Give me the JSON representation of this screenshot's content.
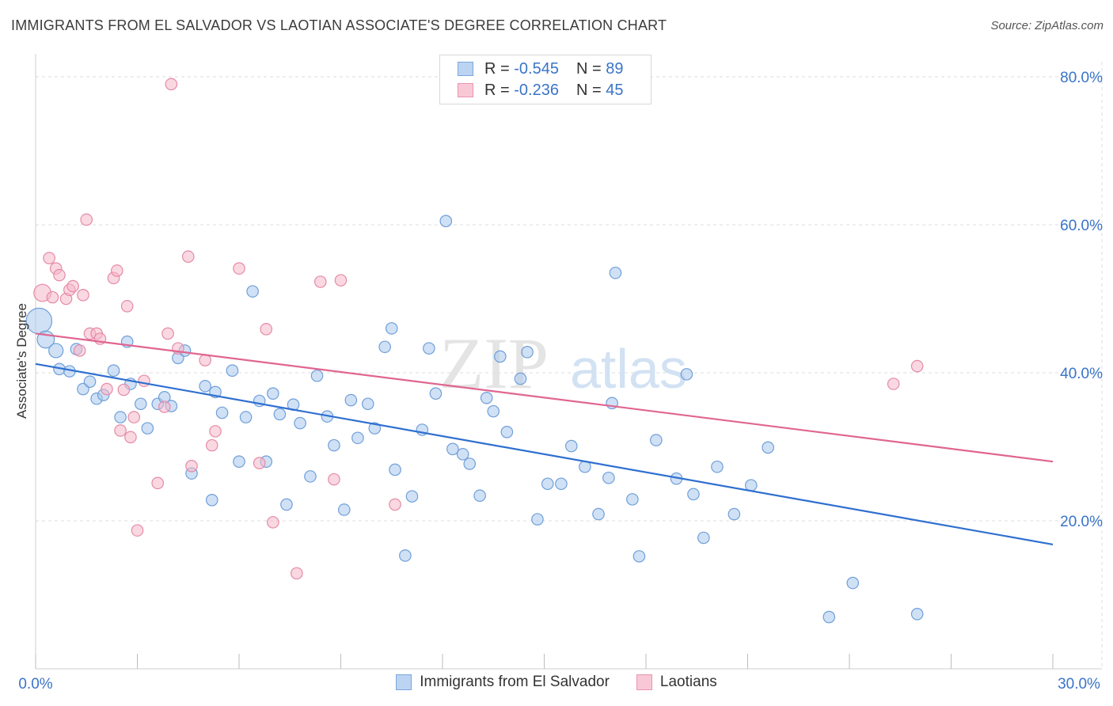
{
  "title": "IMMIGRANTS FROM EL SALVADOR VS LAOTIAN ASSOCIATE'S DEGREE CORRELATION CHART",
  "source": "Source: ZipAtlas.com",
  "watermark": {
    "zip": "ZIP",
    "atlas": "atlas"
  },
  "legend": {
    "rows": [
      {
        "r_label": "R =",
        "r_value": "-0.545",
        "n_label": "N =",
        "n_value": "89"
      },
      {
        "r_label": "R =",
        "r_value": "-0.236",
        "n_label": "N =",
        "n_value": "45"
      }
    ]
  },
  "bottom_legend": [
    "Immigrants from El Salvador",
    "Laotians"
  ],
  "colors": {
    "blue_fill": "#a9c8ee",
    "blue_stroke": "#6f9fd8",
    "blue_line": "#2f6fd0",
    "pink_fill": "#f6b8cb",
    "pink_stroke": "#e58aa6",
    "pink_line": "#e06590",
    "axis_text": "#3a74c8",
    "grid": "#dcdcdc"
  },
  "chart_data": {
    "type": "scatter",
    "title": "IMMIGRANTS FROM EL SALVADOR VS LAOTIAN ASSOCIATE'S DEGREE CORRELATION CHART",
    "xlabel": "",
    "ylabel": "Associate's Degree",
    "xlim": [
      0,
      30
    ],
    "ylim": [
      0,
      80
    ],
    "x_tick_labels": [
      "0.0%",
      "30.0%"
    ],
    "y_tick_labels": [
      "20.0%",
      "40.0%",
      "60.0%",
      "80.0%"
    ],
    "y_ticks": [
      20,
      40,
      60,
      80
    ],
    "grid": true,
    "legend_position": "top-center",
    "series": [
      {
        "name": "Immigrants from El Salvador",
        "color": "blue",
        "trend": [
          [
            0,
            41.2
          ],
          [
            30,
            16.8
          ]
        ],
        "points": [
          [
            0.1,
            47.0,
            1.8
          ],
          [
            0.3,
            44.5,
            1.2
          ],
          [
            0.6,
            43.0,
            1.0
          ],
          [
            0.7,
            40.5,
            0.8
          ],
          [
            1.0,
            40.2,
            0.8
          ],
          [
            1.2,
            43.2,
            0.8
          ],
          [
            1.4,
            37.8,
            0.8
          ],
          [
            1.6,
            38.8,
            0.8
          ],
          [
            1.8,
            36.5,
            0.8
          ],
          [
            2.0,
            37.0,
            0.8
          ],
          [
            2.3,
            40.3,
            0.8
          ],
          [
            2.5,
            34.0,
            0.8
          ],
          [
            2.7,
            44.2,
            0.8
          ],
          [
            2.8,
            38.5,
            0.8
          ],
          [
            3.1,
            35.8,
            0.8
          ],
          [
            3.3,
            32.5,
            0.8
          ],
          [
            3.6,
            35.8,
            0.8
          ],
          [
            3.8,
            36.7,
            0.8
          ],
          [
            4.0,
            35.5,
            0.8
          ],
          [
            4.2,
            42.0,
            0.8
          ],
          [
            4.4,
            43.0,
            0.8
          ],
          [
            4.6,
            26.4,
            0.8
          ],
          [
            5.0,
            38.2,
            0.8
          ],
          [
            5.2,
            22.8,
            0.8
          ],
          [
            5.3,
            37.4,
            0.8
          ],
          [
            5.5,
            34.6,
            0.8
          ],
          [
            5.8,
            40.3,
            0.8
          ],
          [
            6.0,
            28.0,
            0.8
          ],
          [
            6.2,
            34.0,
            0.8
          ],
          [
            6.4,
            51.0,
            0.8
          ],
          [
            6.6,
            36.2,
            0.8
          ],
          [
            6.8,
            28.0,
            0.8
          ],
          [
            7.0,
            37.2,
            0.8
          ],
          [
            7.2,
            34.4,
            0.8
          ],
          [
            7.4,
            22.2,
            0.8
          ],
          [
            7.6,
            35.7,
            0.8
          ],
          [
            7.8,
            33.2,
            0.8
          ],
          [
            8.1,
            26.0,
            0.8
          ],
          [
            8.3,
            39.6,
            0.8
          ],
          [
            8.6,
            34.1,
            0.8
          ],
          [
            8.8,
            30.2,
            0.8
          ],
          [
            9.1,
            21.5,
            0.8
          ],
          [
            9.3,
            36.3,
            0.8
          ],
          [
            9.5,
            31.2,
            0.8
          ],
          [
            9.8,
            35.8,
            0.8
          ],
          [
            10.0,
            32.5,
            0.8
          ],
          [
            10.3,
            43.5,
            0.8
          ],
          [
            10.5,
            46.0,
            0.8
          ],
          [
            10.6,
            26.9,
            0.8
          ],
          [
            10.9,
            15.3,
            0.8
          ],
          [
            11.1,
            23.3,
            0.8
          ],
          [
            11.4,
            32.3,
            0.8
          ],
          [
            11.6,
            43.3,
            0.8
          ],
          [
            11.8,
            37.2,
            0.8
          ],
          [
            12.1,
            60.5,
            0.8
          ],
          [
            12.3,
            29.7,
            0.8
          ],
          [
            12.6,
            29.0,
            0.8
          ],
          [
            12.8,
            27.7,
            0.8
          ],
          [
            13.1,
            23.4,
            0.8
          ],
          [
            13.3,
            36.6,
            0.8
          ],
          [
            13.5,
            34.8,
            0.8
          ],
          [
            13.7,
            42.2,
            0.8
          ],
          [
            13.9,
            32.0,
            0.8
          ],
          [
            14.3,
            39.2,
            0.8
          ],
          [
            14.5,
            42.8,
            0.8
          ],
          [
            14.8,
            20.2,
            0.8
          ],
          [
            15.1,
            25.0,
            0.8
          ],
          [
            15.5,
            25.0,
            0.8
          ],
          [
            15.8,
            30.1,
            0.8
          ],
          [
            16.2,
            27.3,
            0.8
          ],
          [
            16.6,
            20.9,
            0.8
          ],
          [
            16.9,
            25.8,
            0.8
          ],
          [
            17.0,
            35.9,
            0.8
          ],
          [
            17.1,
            53.5,
            0.8
          ],
          [
            17.6,
            22.9,
            0.8
          ],
          [
            17.8,
            15.2,
            0.8
          ],
          [
            18.3,
            30.9,
            0.8
          ],
          [
            18.9,
            25.7,
            0.8
          ],
          [
            19.2,
            39.8,
            0.8
          ],
          [
            19.4,
            23.6,
            0.8
          ],
          [
            19.7,
            17.7,
            0.8
          ],
          [
            20.1,
            27.3,
            0.8
          ],
          [
            20.6,
            20.9,
            0.8
          ],
          [
            21.1,
            24.8,
            0.8
          ],
          [
            21.6,
            29.9,
            0.8
          ],
          [
            23.4,
            7.0,
            0.8
          ],
          [
            24.1,
            11.6,
            0.8
          ],
          [
            26.0,
            7.4,
            0.8
          ]
        ]
      },
      {
        "name": "Laotians",
        "color": "pink",
        "trend": [
          [
            0,
            45.3
          ],
          [
            30,
            28.0
          ]
        ],
        "points": [
          [
            0.2,
            50.8,
            1.2
          ],
          [
            0.4,
            55.5,
            0.8
          ],
          [
            0.5,
            50.2,
            0.8
          ],
          [
            0.6,
            54.1,
            0.8
          ],
          [
            0.7,
            53.2,
            0.8
          ],
          [
            0.9,
            50.0,
            0.8
          ],
          [
            1.0,
            51.2,
            0.8
          ],
          [
            1.1,
            51.7,
            0.8
          ],
          [
            1.3,
            43.0,
            0.8
          ],
          [
            1.4,
            50.5,
            0.8
          ],
          [
            1.5,
            60.7,
            0.8
          ],
          [
            1.6,
            45.3,
            0.8
          ],
          [
            1.8,
            45.3,
            0.8
          ],
          [
            1.9,
            44.6,
            0.8
          ],
          [
            2.1,
            37.8,
            0.8
          ],
          [
            2.3,
            52.8,
            0.8
          ],
          [
            2.4,
            53.8,
            0.8
          ],
          [
            2.5,
            32.2,
            0.8
          ],
          [
            2.6,
            37.7,
            0.8
          ],
          [
            2.7,
            49.0,
            0.8
          ],
          [
            2.8,
            31.3,
            0.8
          ],
          [
            2.9,
            34.0,
            0.8
          ],
          [
            3.0,
            18.7,
            0.8
          ],
          [
            3.2,
            38.9,
            0.8
          ],
          [
            3.6,
            25.1,
            0.8
          ],
          [
            3.8,
            35.4,
            0.8
          ],
          [
            3.9,
            45.3,
            0.8
          ],
          [
            4.0,
            79.0,
            0.8
          ],
          [
            4.2,
            43.3,
            0.8
          ],
          [
            4.5,
            55.7,
            0.8
          ],
          [
            4.6,
            27.4,
            0.8
          ],
          [
            5.0,
            41.7,
            0.8
          ],
          [
            5.2,
            30.2,
            0.8
          ],
          [
            5.3,
            32.1,
            0.8
          ],
          [
            6.0,
            54.1,
            0.8
          ],
          [
            6.6,
            27.8,
            0.8
          ],
          [
            6.8,
            45.9,
            0.8
          ],
          [
            7.0,
            19.8,
            0.8
          ],
          [
            7.7,
            12.9,
            0.8
          ],
          [
            8.4,
            52.3,
            0.8
          ],
          [
            8.8,
            25.6,
            0.8
          ],
          [
            9.0,
            52.5,
            0.8
          ],
          [
            10.6,
            22.2,
            0.8
          ],
          [
            25.3,
            38.5,
            0.8
          ],
          [
            26.0,
            40.9,
            0.8
          ]
        ]
      }
    ]
  }
}
